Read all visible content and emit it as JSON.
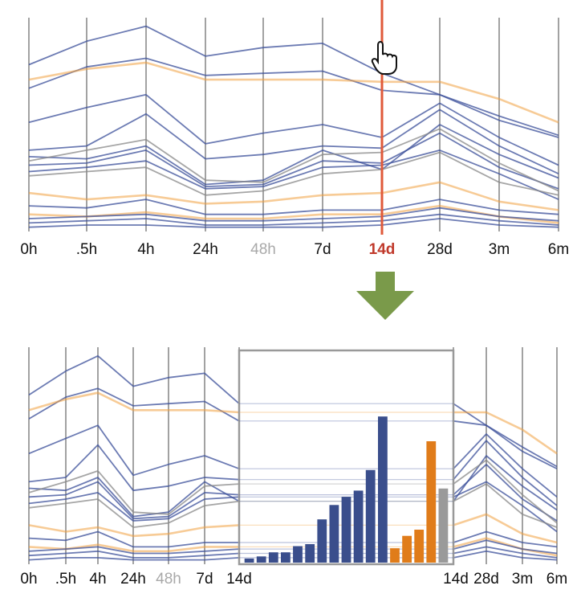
{
  "colors": {
    "background": "#ffffff",
    "axis_line": "#555555",
    "blue": "#3b4f9a",
    "orange": "#f0a040",
    "grey": "#888888",
    "highlight": "#e05a3a",
    "arrow": "#7a9a4a",
    "bar_blue": "#3a4e8c",
    "bar_orange": "#e07c1a",
    "bar_grey": "#9a9a9a",
    "box": "#999999"
  },
  "icons": {
    "cursor": "hand-pointer-icon",
    "arrow": "down-arrow-icon"
  },
  "chart_data": [
    {
      "type": "line",
      "kind": "parallel-coordinates",
      "axes": [
        "0h",
        ".5h",
        "4h",
        "24h",
        "48h",
        "7d",
        "14d",
        "28d",
        "3m",
        "6m"
      ],
      "muted_axis": "48h",
      "highlighted_axis": "14d",
      "ylim": [
        0,
        100
      ],
      "series": [
        {
          "color": "blue",
          "values": [
            78,
            89,
            96,
            82,
            86,
            88,
            74,
            64,
            54,
            45
          ]
        },
        {
          "color": "blue",
          "values": [
            67,
            77,
            81,
            73,
            74,
            75,
            66,
            64,
            52,
            44
          ]
        },
        {
          "color": "blue",
          "values": [
            51,
            58,
            64,
            41,
            46,
            50,
            44,
            60,
            44,
            31
          ]
        },
        {
          "color": "blue",
          "values": [
            38,
            40,
            55,
            34,
            36,
            40,
            39,
            57,
            40,
            27
          ]
        },
        {
          "color": "blue",
          "values": [
            35,
            34,
            40,
            22,
            24,
            38,
            29,
            50,
            36,
            25
          ]
        },
        {
          "color": "blue",
          "values": [
            31,
            32,
            38,
            21,
            22,
            33,
            32,
            46,
            30,
            20
          ]
        },
        {
          "color": "blue",
          "values": [
            28,
            30,
            33,
            20,
            21,
            30,
            31,
            38,
            27,
            15
          ]
        },
        {
          "color": "grey",
          "values": [
            33,
            38,
            43,
            24,
            23,
            36,
            37,
            48,
            32,
            19
          ]
        },
        {
          "color": "grey",
          "values": [
            26,
            28,
            30,
            17,
            19,
            27,
            29,
            37,
            23,
            17
          ]
        },
        {
          "color": "orange",
          "values": [
            71,
            76,
            79,
            71,
            71,
            71,
            70,
            70,
            62,
            51
          ]
        },
        {
          "color": "orange",
          "values": [
            18,
            15,
            17,
            13,
            14,
            17,
            18,
            23,
            14,
            10
          ]
        },
        {
          "color": "orange",
          "values": [
            8,
            7,
            9,
            6,
            6,
            8,
            8,
            12,
            7,
            4
          ]
        },
        {
          "color": "blue",
          "values": [
            12,
            11,
            15,
            8,
            8,
            10,
            10,
            15,
            10,
            8
          ]
        },
        {
          "color": "blue",
          "values": [
            6,
            7,
            8,
            5,
            5,
            6,
            7,
            11,
            7,
            5
          ]
        },
        {
          "color": "blue",
          "values": [
            4,
            5,
            6,
            3,
            3,
            4,
            5,
            8,
            5,
            3
          ]
        },
        {
          "color": "blue",
          "values": [
            2,
            3,
            3,
            2,
            2,
            2,
            3,
            6,
            3,
            2
          ]
        }
      ]
    },
    {
      "type": "line",
      "kind": "parallel-coordinates-with-histogram",
      "axes": [
        "0h",
        ".5h",
        "4h",
        "24h",
        "48h",
        "7d",
        "14d",
        "14d",
        "28d",
        "3m",
        "6m"
      ],
      "muted_axis": "48h",
      "ylim": [
        0,
        100
      ],
      "series": "same as first panel",
      "histogram": {
        "type": "bar",
        "values": [
          2,
          3,
          5,
          5,
          8,
          9,
          21,
          28,
          32,
          35,
          45,
          71,
          7,
          13,
          16,
          59,
          36
        ],
        "colors": [
          "blue",
          "blue",
          "blue",
          "blue",
          "blue",
          "blue",
          "blue",
          "blue",
          "blue",
          "blue",
          "blue",
          "blue",
          "orange",
          "orange",
          "orange",
          "orange",
          "grey"
        ],
        "ylim": [
          0,
          100
        ]
      }
    }
  ]
}
